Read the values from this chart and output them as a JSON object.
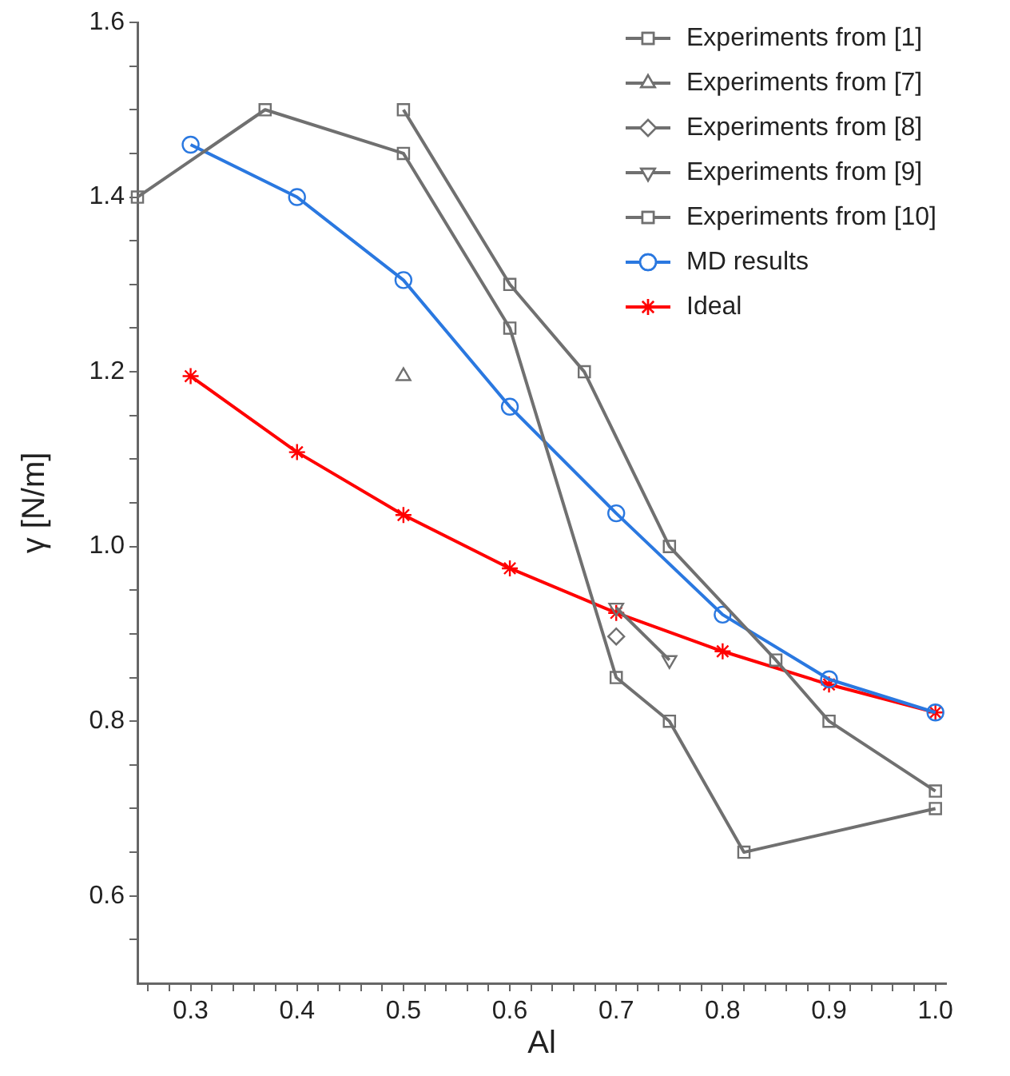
{
  "chart_data": {
    "type": "line",
    "xlabel": "Al",
    "ylabel": "γ [N/m]",
    "xlim": [
      0.25,
      1.01
    ],
    "ylim": [
      0.5,
      1.6
    ],
    "xticks": [
      {
        "value": 0.26,
        "label": null
      },
      {
        "value": 0.28,
        "label": null
      },
      {
        "value": 0.3,
        "label": "0.3"
      },
      {
        "value": 0.32,
        "label": null
      },
      {
        "value": 0.34,
        "label": null
      },
      {
        "value": 0.36,
        "label": null
      },
      {
        "value": 0.38,
        "label": null
      },
      {
        "value": 0.4,
        "label": "0.4"
      },
      {
        "value": 0.42,
        "label": null
      },
      {
        "value": 0.44,
        "label": null
      },
      {
        "value": 0.46,
        "label": null
      },
      {
        "value": 0.48,
        "label": null
      },
      {
        "value": 0.5,
        "label": "0.5"
      },
      {
        "value": 0.52,
        "label": null
      },
      {
        "value": 0.54,
        "label": null
      },
      {
        "value": 0.56,
        "label": null
      },
      {
        "value": 0.58,
        "label": null
      },
      {
        "value": 0.6,
        "label": "0.6"
      },
      {
        "value": 0.62,
        "label": null
      },
      {
        "value": 0.64,
        "label": null
      },
      {
        "value": 0.66,
        "label": null
      },
      {
        "value": 0.68,
        "label": null
      },
      {
        "value": 0.7,
        "label": "0.7"
      },
      {
        "value": 0.72,
        "label": null
      },
      {
        "value": 0.74,
        "label": null
      },
      {
        "value": 0.76,
        "label": null
      },
      {
        "value": 0.78,
        "label": null
      },
      {
        "value": 0.8,
        "label": "0.8"
      },
      {
        "value": 0.82,
        "label": null
      },
      {
        "value": 0.84,
        "label": null
      },
      {
        "value": 0.86,
        "label": null
      },
      {
        "value": 0.88,
        "label": null
      },
      {
        "value": 0.9,
        "label": "0.9"
      },
      {
        "value": 0.92,
        "label": null
      },
      {
        "value": 0.94,
        "label": null
      },
      {
        "value": 0.96,
        "label": null
      },
      {
        "value": 0.98,
        "label": null
      },
      {
        "value": 1.0,
        "label": "1.0"
      }
    ],
    "yticks": [
      {
        "value": 0.55,
        "label": null
      },
      {
        "value": 0.6,
        "label": "0.6"
      },
      {
        "value": 0.65,
        "label": null
      },
      {
        "value": 0.7,
        "label": null
      },
      {
        "value": 0.75,
        "label": null
      },
      {
        "value": 0.8,
        "label": "0.8"
      },
      {
        "value": 0.85,
        "label": null
      },
      {
        "value": 0.9,
        "label": null
      },
      {
        "value": 0.95,
        "label": null
      },
      {
        "value": 1.0,
        "label": "1.0"
      },
      {
        "value": 1.05,
        "label": null
      },
      {
        "value": 1.1,
        "label": null
      },
      {
        "value": 1.15,
        "label": null
      },
      {
        "value": 1.2,
        "label": "1.2"
      },
      {
        "value": 1.25,
        "label": null
      },
      {
        "value": 1.3,
        "label": null
      },
      {
        "value": 1.35,
        "label": null
      },
      {
        "value": 1.4,
        "label": "1.4"
      },
      {
        "value": 1.45,
        "label": null
      },
      {
        "value": 1.5,
        "label": null
      },
      {
        "value": 1.55,
        "label": null
      },
      {
        "value": 1.6,
        "label": "1.6"
      }
    ],
    "grid": false,
    "legend": "top right",
    "line_style": "solid",
    "series": [
      {
        "name": "Experiments from [1]",
        "color": "#707070",
        "marker": "square",
        "x": [
          0.25,
          0.37,
          0.5,
          0.6,
          0.7,
          0.75,
          0.82,
          1.0
        ],
        "values": [
          1.4,
          1.5,
          1.45,
          1.25,
          0.85,
          0.8,
          0.65,
          0.7
        ]
      },
      {
        "name": "Experiments from [7]",
        "color": "#707070",
        "marker": "triangle",
        "x": [
          0.5
        ],
        "values": [
          1.195
        ]
      },
      {
        "name": "Experiments from [8]",
        "color": "#707070",
        "marker": "diamond",
        "x": [
          0.7
        ],
        "values": [
          0.897
        ]
      },
      {
        "name": "Experiments from [9]",
        "color": "#707070",
        "marker": "triangle_down",
        "x": [
          0.7,
          0.75
        ],
        "values": [
          0.93,
          0.87
        ]
      },
      {
        "name": "Experiments from [10]",
        "color": "#707070",
        "marker": "square",
        "x": [
          0.5,
          0.6,
          0.67,
          0.75,
          0.85,
          0.9,
          1.0
        ],
        "values": [
          1.5,
          1.3,
          1.2,
          1.0,
          0.87,
          0.8,
          0.72
        ]
      },
      {
        "name": "MD results",
        "color": "#2a78e0",
        "marker": "circle",
        "x": [
          0.3,
          0.4,
          0.5,
          0.6,
          0.7,
          0.8,
          0.9,
          1.0
        ],
        "values": [
          1.46,
          1.4,
          1.305,
          1.16,
          1.038,
          0.922,
          0.848,
          0.81
        ]
      },
      {
        "name": "Ideal",
        "color": "#ff0000",
        "marker": "cross",
        "x": [
          0.3,
          0.4,
          0.5,
          0.6,
          0.7,
          0.8,
          0.9,
          1.0
        ],
        "values": [
          1.195,
          1.108,
          1.036,
          0.975,
          0.924,
          0.88,
          0.842,
          0.81
        ]
      }
    ]
  }
}
